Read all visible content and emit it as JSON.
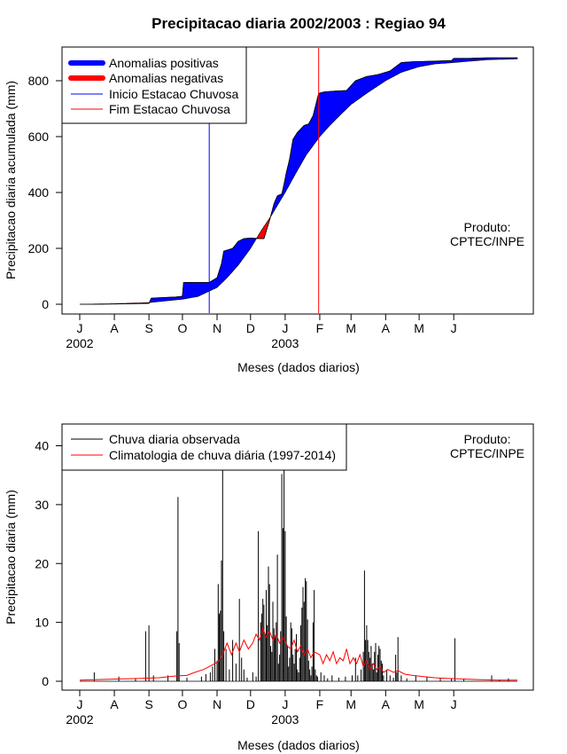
{
  "colors": {
    "positive": "#0000ff",
    "negative": "#ff0000",
    "observed": "#000000",
    "climatology": "#ff0000",
    "onset": "#0000ff",
    "end": "#ff0000"
  },
  "chart_data": [
    {
      "type": "area",
      "title": "Precipitacao diaria 2002/2003 : Regiao 94",
      "xlabel": "Meses (dados diarios)",
      "ylabel": "Precipitacao diaria acumulada (mm)",
      "note": [
        "Produto:",
        "CPTEC/INPE"
      ],
      "x_ticks": [
        {
          "label": "J",
          "date": "2002-07-01"
        },
        {
          "label": "A",
          "date": "2002-08-01"
        },
        {
          "label": "S",
          "date": "2002-09-01"
        },
        {
          "label": "O",
          "date": "2002-10-01"
        },
        {
          "label": "N",
          "date": "2002-11-01"
        },
        {
          "label": "D",
          "date": "2002-12-01"
        },
        {
          "label": "J",
          "date": "2003-01-01"
        },
        {
          "label": "F",
          "date": "2003-02-01"
        },
        {
          "label": "M",
          "date": "2003-03-01"
        },
        {
          "label": "A",
          "date": "2003-04-01"
        },
        {
          "label": "M",
          "date": "2003-05-01"
        },
        {
          "label": "J",
          "date": "2003-06-01"
        }
      ],
      "year_labels": [
        {
          "label": "2002",
          "date": "2002-07-01"
        },
        {
          "label": "2003",
          "date": "2003-01-01"
        }
      ],
      "xlim": [
        "2002-07-01",
        "2003-07-31"
      ],
      "ylim": [
        -30,
        930
      ],
      "y_ticks": [
        0,
        200,
        400,
        600,
        800
      ],
      "legend": {
        "position": "top-left",
        "entries": [
          {
            "label": "Anomalias positivas",
            "color": "#0000ff",
            "style": "thick"
          },
          {
            "label": "Anomalias negativas",
            "color": "#ff0000",
            "style": "thick"
          },
          {
            "label": "Inicio Estacao Chuvosa",
            "color": "#0000ff",
            "style": "thin"
          },
          {
            "label": "Fim Estacao Chuvosa",
            "color": "#ff0000",
            "style": "thin"
          }
        ]
      },
      "onset_date": "2002-10-25",
      "end_date": "2003-01-31",
      "observed_cumulative": [
        [
          "2002-07-01",
          0
        ],
        [
          "2002-07-15",
          0
        ],
        [
          "2002-08-01",
          1
        ],
        [
          "2002-08-15",
          2
        ],
        [
          "2002-09-01",
          3
        ],
        [
          "2002-09-03",
          22
        ],
        [
          "2002-09-25",
          26
        ],
        [
          "2002-09-30",
          28
        ],
        [
          "2002-10-01",
          30
        ],
        [
          "2002-10-02",
          78
        ],
        [
          "2002-10-25",
          78
        ],
        [
          "2002-11-01",
          95
        ],
        [
          "2002-11-05",
          145
        ],
        [
          "2002-11-07",
          190
        ],
        [
          "2002-11-15",
          200
        ],
        [
          "2002-11-20",
          225
        ],
        [
          "2002-11-25",
          235
        ],
        [
          "2002-12-01",
          237
        ],
        [
          "2002-12-05",
          236
        ],
        [
          "2002-12-10",
          235
        ],
        [
          "2002-12-13",
          235
        ],
        [
          "2002-12-18",
          300
        ],
        [
          "2002-12-22",
          360
        ],
        [
          "2002-12-25",
          388
        ],
        [
          "2002-12-29",
          395
        ],
        [
          "2002-12-31",
          430
        ],
        [
          "2003-01-02",
          470
        ],
        [
          "2003-01-05",
          520
        ],
        [
          "2003-01-08",
          590
        ],
        [
          "2003-01-12",
          615
        ],
        [
          "2003-01-18",
          640
        ],
        [
          "2003-01-22",
          645
        ],
        [
          "2003-01-26",
          675
        ],
        [
          "2003-01-31",
          755
        ],
        [
          "2003-02-05",
          760
        ],
        [
          "2003-02-15",
          763
        ],
        [
          "2003-02-25",
          765
        ],
        [
          "2003-03-05",
          800
        ],
        [
          "2003-03-15",
          815
        ],
        [
          "2003-03-25",
          822
        ],
        [
          "2003-04-05",
          835
        ],
        [
          "2003-04-15",
          865
        ],
        [
          "2003-04-25",
          868
        ],
        [
          "2003-05-15",
          870
        ],
        [
          "2003-05-30",
          872
        ],
        [
          "2003-06-01",
          880
        ],
        [
          "2003-06-15",
          880
        ],
        [
          "2003-07-01",
          882
        ],
        [
          "2003-07-28",
          882
        ]
      ],
      "climatology_cumulative": [
        [
          "2002-07-01",
          0
        ],
        [
          "2002-08-01",
          2
        ],
        [
          "2002-09-01",
          6
        ],
        [
          "2002-10-01",
          18
        ],
        [
          "2002-10-15",
          28
        ],
        [
          "2002-11-01",
          60
        ],
        [
          "2002-11-10",
          95
        ],
        [
          "2002-11-20",
          140
        ],
        [
          "2002-12-01",
          200
        ],
        [
          "2002-12-10",
          260
        ],
        [
          "2002-12-20",
          320
        ],
        [
          "2003-01-01",
          400
        ],
        [
          "2003-01-10",
          465
        ],
        [
          "2003-01-20",
          535
        ],
        [
          "2003-02-01",
          600
        ],
        [
          "2003-02-10",
          640
        ],
        [
          "2003-02-20",
          680
        ],
        [
          "2003-03-01",
          715
        ],
        [
          "2003-03-15",
          755
        ],
        [
          "2003-04-01",
          800
        ],
        [
          "2003-04-15",
          830
        ],
        [
          "2003-05-01",
          850
        ],
        [
          "2003-05-15",
          860
        ],
        [
          "2003-06-01",
          865
        ],
        [
          "2003-06-15",
          870
        ],
        [
          "2003-07-01",
          875
        ],
        [
          "2003-07-28",
          878
        ]
      ]
    },
    {
      "type": "bar",
      "xlabel": "Meses (dados diarios)",
      "ylabel": "Precipitacao diaria (mm)",
      "note": [
        "Produto:",
        "CPTEC/INPE"
      ],
      "xlim": [
        "2002-07-01",
        "2003-07-31"
      ],
      "ylim": [
        -1.5,
        43.5
      ],
      "y_ticks": [
        0,
        10,
        20,
        30,
        40
      ],
      "legend": {
        "position": "top-left",
        "entries": [
          {
            "label": "Chuva diaria observada",
            "color": "#000000"
          },
          {
            "label": "Climatologia de chuva diária (1997-2014)",
            "color": "#ff0000"
          }
        ]
      },
      "observed_daily": [
        [
          "2002-07-14",
          1.5
        ],
        [
          "2002-08-05",
          0.8
        ],
        [
          "2002-08-20",
          0.5
        ],
        [
          "2002-08-29",
          8.5
        ],
        [
          "2002-09-01",
          9.5
        ],
        [
          "2002-09-05",
          1.0
        ],
        [
          "2002-09-18",
          1.0
        ],
        [
          "2002-09-26",
          8.5
        ],
        [
          "2002-09-27",
          31.3
        ],
        [
          "2002-09-28",
          6.5
        ],
        [
          "2002-10-05",
          0.6
        ],
        [
          "2002-10-18",
          0.8
        ],
        [
          "2002-10-22",
          1.2
        ],
        [
          "2002-10-26",
          1.5
        ],
        [
          "2002-10-28",
          2.5
        ],
        [
          "2002-10-30",
          5.5
        ],
        [
          "2002-11-01",
          3.5
        ],
        [
          "2002-11-02",
          16.5
        ],
        [
          "2002-11-03",
          11.5
        ],
        [
          "2002-11-04",
          12.0
        ],
        [
          "2002-11-05",
          20.5
        ],
        [
          "2002-11-06",
          36.0
        ],
        [
          "2002-11-07",
          8.5
        ],
        [
          "2002-11-09",
          5.5
        ],
        [
          "2002-11-12",
          2.0
        ],
        [
          "2002-11-15",
          7.0
        ],
        [
          "2002-11-18",
          3.0
        ],
        [
          "2002-11-21",
          14.0
        ],
        [
          "2002-11-23",
          4.0
        ],
        [
          "2002-11-25",
          2.0
        ],
        [
          "2002-11-28",
          0.6
        ],
        [
          "2002-12-03",
          1.5
        ],
        [
          "2002-12-06",
          0.8
        ],
        [
          "2002-12-08",
          25.5
        ],
        [
          "2002-12-10",
          10.0
        ],
        [
          "2002-12-11",
          11.5
        ],
        [
          "2002-12-12",
          14.0
        ],
        [
          "2002-12-13",
          13.0
        ],
        [
          "2002-12-14",
          8.0
        ],
        [
          "2002-12-15",
          15.5
        ],
        [
          "2002-12-16",
          9.5
        ],
        [
          "2002-12-17",
          19.5
        ],
        [
          "2002-12-18",
          16.5
        ],
        [
          "2002-12-19",
          6.0
        ],
        [
          "2002-12-20",
          5.0
        ],
        [
          "2002-12-21",
          13.5
        ],
        [
          "2002-12-22",
          9.0
        ],
        [
          "2002-12-23",
          7.5
        ],
        [
          "2002-12-24",
          10.0
        ],
        [
          "2002-12-25",
          21.5
        ],
        [
          "2002-12-26",
          3.0
        ],
        [
          "2002-12-27",
          4.5
        ],
        [
          "2002-12-28",
          8.5
        ],
        [
          "2002-12-29",
          35.2
        ],
        [
          "2002-12-30",
          26.0
        ],
        [
          "2002-12-31",
          37.0
        ],
        [
          "2003-01-01",
          25.5
        ],
        [
          "2003-01-02",
          11.0
        ],
        [
          "2003-01-03",
          6.0
        ],
        [
          "2003-01-04",
          2.5
        ],
        [
          "2003-01-05",
          4.0
        ],
        [
          "2003-01-06",
          10.0
        ],
        [
          "2003-01-07",
          9.0
        ],
        [
          "2003-01-08",
          4.5
        ],
        [
          "2003-01-09",
          3.0
        ],
        [
          "2003-01-10",
          5.5
        ],
        [
          "2003-01-11",
          8.0
        ],
        [
          "2003-01-12",
          2.0
        ],
        [
          "2003-01-13",
          1.5
        ],
        [
          "2003-01-14",
          4.0
        ],
        [
          "2003-01-15",
          9.5
        ],
        [
          "2003-01-16",
          12.5
        ],
        [
          "2003-01-17",
          16.0
        ],
        [
          "2003-01-18",
          13.5
        ],
        [
          "2003-01-19",
          17.5
        ],
        [
          "2003-01-20",
          17.0
        ],
        [
          "2003-01-21",
          10.5
        ],
        [
          "2003-01-22",
          3.5
        ],
        [
          "2003-01-23",
          2.0
        ],
        [
          "2003-01-24",
          1.0
        ],
        [
          "2003-01-25",
          2.5
        ],
        [
          "2003-01-26",
          10.0
        ],
        [
          "2003-01-27",
          15.5
        ],
        [
          "2003-01-28",
          2.0
        ],
        [
          "2003-01-29",
          1.0
        ],
        [
          "2003-01-30",
          0.8
        ],
        [
          "2003-02-02",
          1.5
        ],
        [
          "2003-02-05",
          1.0
        ],
        [
          "2003-02-08",
          0.5
        ],
        [
          "2003-02-12",
          1.0
        ],
        [
          "2003-02-18",
          0.6
        ],
        [
          "2003-02-24",
          0.8
        ],
        [
          "2003-03-02",
          1.0
        ],
        [
          "2003-03-05",
          4.0
        ],
        [
          "2003-03-07",
          1.0
        ],
        [
          "2003-03-10",
          2.0
        ],
        [
          "2003-03-12",
          5.0
        ],
        [
          "2003-03-13",
          18.8
        ],
        [
          "2003-03-14",
          7.0
        ],
        [
          "2003-03-15",
          9.5
        ],
        [
          "2003-03-16",
          7.0
        ],
        [
          "2003-03-17",
          5.0
        ],
        [
          "2003-03-18",
          4.0
        ],
        [
          "2003-03-19",
          6.0
        ],
        [
          "2003-03-20",
          3.0
        ],
        [
          "2003-03-21",
          2.0
        ],
        [
          "2003-03-22",
          5.0
        ],
        [
          "2003-03-23",
          6.5
        ],
        [
          "2003-03-24",
          1.5
        ],
        [
          "2003-03-25",
          4.5
        ],
        [
          "2003-03-26",
          6.0
        ],
        [
          "2003-03-27",
          5.5
        ],
        [
          "2003-03-28",
          3.5
        ],
        [
          "2003-03-29",
          3.0
        ],
        [
          "2003-03-30",
          1.0
        ],
        [
          "2003-04-02",
          2.0
        ],
        [
          "2003-04-05",
          1.0
        ],
        [
          "2003-04-08",
          0.6
        ],
        [
          "2003-04-10",
          4.5
        ],
        [
          "2003-04-11",
          1.5
        ],
        [
          "2003-04-12",
          7.5
        ],
        [
          "2003-04-15",
          1.0
        ],
        [
          "2003-04-20",
          0.5
        ],
        [
          "2003-04-28",
          1.0
        ],
        [
          "2003-05-08",
          0.8
        ],
        [
          "2003-05-20",
          0.5
        ],
        [
          "2003-05-30",
          0.5
        ],
        [
          "2003-06-02",
          7.3
        ],
        [
          "2003-06-10",
          0.4
        ],
        [
          "2003-07-05",
          1.0
        ],
        [
          "2003-07-12",
          0.3
        ],
        [
          "2003-07-20",
          0.5
        ]
      ],
      "climatology_daily": [
        [
          "2002-07-01",
          0.2
        ],
        [
          "2002-07-20",
          0.3
        ],
        [
          "2002-08-10",
          0.4
        ],
        [
          "2002-08-25",
          0.5
        ],
        [
          "2002-09-10",
          0.6
        ],
        [
          "2002-09-25",
          0.9
        ],
        [
          "2002-10-05",
          1.0
        ],
        [
          "2002-10-12",
          1.5
        ],
        [
          "2002-10-20",
          2.0
        ],
        [
          "2002-10-25",
          2.5
        ],
        [
          "2002-10-30",
          3.0
        ],
        [
          "2002-11-03",
          3.5
        ],
        [
          "2002-11-07",
          5.0
        ],
        [
          "2002-11-10",
          6.5
        ],
        [
          "2002-11-14",
          4.5
        ],
        [
          "2002-11-18",
          6.5
        ],
        [
          "2002-11-21",
          5.0
        ],
        [
          "2002-11-25",
          7.0
        ],
        [
          "2002-11-29",
          5.5
        ],
        [
          "2002-12-03",
          6.5
        ],
        [
          "2002-12-06",
          8.0
        ],
        [
          "2002-12-09",
          7.0
        ],
        [
          "2002-12-12",
          9.0
        ],
        [
          "2002-12-15",
          7.5
        ],
        [
          "2002-12-18",
          8.5
        ],
        [
          "2002-12-21",
          7.0
        ],
        [
          "2002-12-24",
          8.0
        ],
        [
          "2002-12-27",
          6.5
        ],
        [
          "2002-12-30",
          7.5
        ],
        [
          "2003-01-03",
          6.0
        ],
        [
          "2003-01-06",
          5.5
        ],
        [
          "2003-01-09",
          7.0
        ],
        [
          "2003-01-12",
          5.0
        ],
        [
          "2003-01-15",
          6.0
        ],
        [
          "2003-01-18",
          4.5
        ],
        [
          "2003-01-21",
          5.5
        ],
        [
          "2003-01-24",
          4.0
        ],
        [
          "2003-01-27",
          5.0
        ],
        [
          "2003-02-01",
          4.5
        ],
        [
          "2003-02-04",
          3.0
        ],
        [
          "2003-02-07",
          4.5
        ],
        [
          "2003-02-10",
          3.5
        ],
        [
          "2003-02-13",
          5.0
        ],
        [
          "2003-02-16",
          3.0
        ],
        [
          "2003-02-19",
          4.0
        ],
        [
          "2003-02-22",
          3.5
        ],
        [
          "2003-02-25",
          5.5
        ],
        [
          "2003-02-28",
          3.0
        ],
        [
          "2003-03-03",
          4.0
        ],
        [
          "2003-03-06",
          3.0
        ],
        [
          "2003-03-09",
          4.5
        ],
        [
          "2003-03-12",
          2.5
        ],
        [
          "2003-03-15",
          3.5
        ],
        [
          "2003-03-18",
          2.0
        ],
        [
          "2003-03-21",
          3.0
        ],
        [
          "2003-03-24",
          2.0
        ],
        [
          "2003-03-27",
          2.5
        ],
        [
          "2003-03-30",
          1.5
        ],
        [
          "2003-04-03",
          2.0
        ],
        [
          "2003-04-08",
          1.5
        ],
        [
          "2003-04-12",
          1.8
        ],
        [
          "2003-04-18",
          1.2
        ],
        [
          "2003-04-25",
          1.0
        ],
        [
          "2003-05-05",
          0.8
        ],
        [
          "2003-05-15",
          0.6
        ],
        [
          "2003-05-25",
          0.5
        ],
        [
          "2003-06-05",
          0.4
        ],
        [
          "2003-06-20",
          0.3
        ],
        [
          "2003-07-10",
          0.2
        ],
        [
          "2003-07-28",
          0.2
        ]
      ]
    }
  ]
}
